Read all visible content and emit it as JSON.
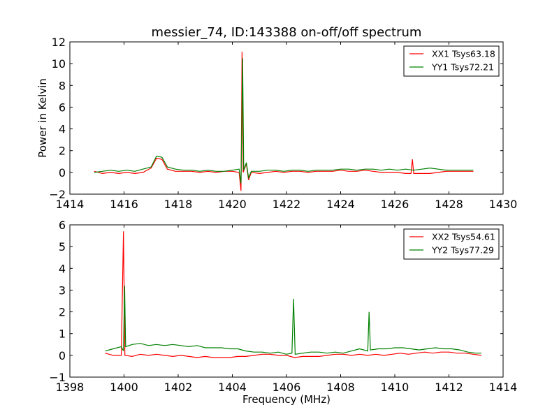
{
  "chart_data": [
    {
      "type": "line",
      "title": "messier_74, ID:143388 on-off/off spectrum",
      "xlabel": "",
      "ylabel": "Power in Kelvin",
      "xlim": [
        1414,
        1430
      ],
      "ylim": [
        -2,
        12
      ],
      "xticks": [
        1414,
        1416,
        1418,
        1420,
        1422,
        1424,
        1426,
        1428,
        1430
      ],
      "yticks": [
        -2,
        0,
        2,
        4,
        6,
        8,
        10,
        12
      ],
      "legend_position": "top-right",
      "series": [
        {
          "name": "XX1 Tsys63.18",
          "color": "#ff0000",
          "points": [
            [
              1414.9,
              0.1
            ],
            [
              1415.2,
              -0.1
            ],
            [
              1415.5,
              0.0
            ],
            [
              1415.8,
              -0.1
            ],
            [
              1416.1,
              0.0
            ],
            [
              1416.4,
              -0.1
            ],
            [
              1416.7,
              0.0
            ],
            [
              1417.0,
              0.4
            ],
            [
              1417.2,
              1.3
            ],
            [
              1417.4,
              1.2
            ],
            [
              1417.6,
              0.3
            ],
            [
              1417.9,
              0.1
            ],
            [
              1418.2,
              0.1
            ],
            [
              1418.5,
              0.1
            ],
            [
              1418.8,
              0.0
            ],
            [
              1419.1,
              0.1
            ],
            [
              1419.4,
              0.0
            ],
            [
              1419.7,
              0.1
            ],
            [
              1420.0,
              0.1
            ],
            [
              1420.25,
              0.0
            ],
            [
              1420.32,
              -1.7
            ],
            [
              1420.36,
              11.1
            ],
            [
              1420.4,
              0.0
            ],
            [
              1420.52,
              0.8
            ],
            [
              1420.6,
              -0.7
            ],
            [
              1420.7,
              0.0
            ],
            [
              1421.0,
              -0.1
            ],
            [
              1421.3,
              0.0
            ],
            [
              1421.6,
              0.1
            ],
            [
              1421.9,
              0.0
            ],
            [
              1422.2,
              0.1
            ],
            [
              1422.5,
              0.1
            ],
            [
              1422.8,
              0.0
            ],
            [
              1423.1,
              0.1
            ],
            [
              1423.4,
              0.1
            ],
            [
              1423.7,
              0.1
            ],
            [
              1424.0,
              0.2
            ],
            [
              1424.3,
              0.1
            ],
            [
              1424.6,
              0.1
            ],
            [
              1424.9,
              0.2
            ],
            [
              1425.2,
              0.1
            ],
            [
              1425.5,
              0.0
            ],
            [
              1425.8,
              0.0
            ],
            [
              1426.1,
              0.0
            ],
            [
              1426.4,
              -0.1
            ],
            [
              1426.6,
              -0.1
            ],
            [
              1426.65,
              1.2
            ],
            [
              1426.7,
              -0.1
            ],
            [
              1427.0,
              -0.1
            ],
            [
              1427.3,
              -0.1
            ],
            [
              1427.6,
              0.0
            ],
            [
              1427.9,
              0.1
            ],
            [
              1428.2,
              0.1
            ],
            [
              1428.5,
              0.1
            ],
            [
              1428.9,
              0.1
            ]
          ]
        },
        {
          "name": "YY1 Tsys72.21",
          "color": "#008000",
          "points": [
            [
              1414.9,
              0.0
            ],
            [
              1415.2,
              0.1
            ],
            [
              1415.5,
              0.2
            ],
            [
              1415.8,
              0.1
            ],
            [
              1416.1,
              0.2
            ],
            [
              1416.4,
              0.1
            ],
            [
              1416.7,
              0.3
            ],
            [
              1417.0,
              0.5
            ],
            [
              1417.2,
              1.5
            ],
            [
              1417.4,
              1.4
            ],
            [
              1417.6,
              0.5
            ],
            [
              1417.9,
              0.3
            ],
            [
              1418.2,
              0.2
            ],
            [
              1418.5,
              0.2
            ],
            [
              1418.8,
              0.1
            ],
            [
              1419.1,
              0.2
            ],
            [
              1419.4,
              0.1
            ],
            [
              1419.7,
              0.1
            ],
            [
              1420.0,
              0.2
            ],
            [
              1420.25,
              0.3
            ],
            [
              1420.32,
              -1.0
            ],
            [
              1420.38,
              10.5
            ],
            [
              1420.42,
              0.2
            ],
            [
              1420.52,
              0.9
            ],
            [
              1420.6,
              -0.5
            ],
            [
              1420.7,
              0.1
            ],
            [
              1421.0,
              0.1
            ],
            [
              1421.3,
              0.2
            ],
            [
              1421.6,
              0.2
            ],
            [
              1421.9,
              0.1
            ],
            [
              1422.2,
              0.2
            ],
            [
              1422.5,
              0.2
            ],
            [
              1422.8,
              0.1
            ],
            [
              1423.1,
              0.2
            ],
            [
              1423.4,
              0.2
            ],
            [
              1423.7,
              0.2
            ],
            [
              1424.0,
              0.3
            ],
            [
              1424.3,
              0.3
            ],
            [
              1424.6,
              0.2
            ],
            [
              1424.9,
              0.3
            ],
            [
              1425.2,
              0.3
            ],
            [
              1425.5,
              0.2
            ],
            [
              1425.8,
              0.3
            ],
            [
              1426.1,
              0.2
            ],
            [
              1426.4,
              0.3
            ],
            [
              1426.7,
              0.2
            ],
            [
              1427.0,
              0.3
            ],
            [
              1427.3,
              0.4
            ],
            [
              1427.6,
              0.3
            ],
            [
              1427.9,
              0.2
            ],
            [
              1428.2,
              0.2
            ],
            [
              1428.5,
              0.2
            ],
            [
              1428.9,
              0.2
            ]
          ]
        }
      ]
    },
    {
      "type": "line",
      "title": "",
      "xlabel": "Frequency (MHz)",
      "ylabel": "",
      "xlim": [
        1398,
        1414
      ],
      "ylim": [
        -1,
        6
      ],
      "xticks": [
        1398,
        1400,
        1402,
        1404,
        1406,
        1408,
        1410,
        1412,
        1414
      ],
      "yticks": [
        -1,
        0,
        1,
        2,
        3,
        4,
        5,
        6
      ],
      "legend_position": "top-right",
      "series": [
        {
          "name": "XX2 Tsys54.61",
          "color": "#ff0000",
          "points": [
            [
              1399.3,
              0.1
            ],
            [
              1399.6,
              0.0
            ],
            [
              1399.9,
              0.0
            ],
            [
              1399.98,
              5.7
            ],
            [
              1400.03,
              0.0
            ],
            [
              1400.3,
              -0.05
            ],
            [
              1400.6,
              0.05
            ],
            [
              1400.9,
              0.0
            ],
            [
              1401.2,
              0.05
            ],
            [
              1401.5,
              0.0
            ],
            [
              1401.8,
              -0.05
            ],
            [
              1402.1,
              0.0
            ],
            [
              1402.4,
              -0.05
            ],
            [
              1402.7,
              -0.1
            ],
            [
              1403.0,
              -0.05
            ],
            [
              1403.3,
              -0.1
            ],
            [
              1403.6,
              -0.1
            ],
            [
              1403.9,
              -0.1
            ],
            [
              1404.2,
              -0.05
            ],
            [
              1404.5,
              -0.05
            ],
            [
              1404.8,
              0.0
            ],
            [
              1405.1,
              0.05
            ],
            [
              1405.4,
              0.05
            ],
            [
              1405.7,
              0.0
            ],
            [
              1406.0,
              0.0
            ],
            [
              1406.3,
              -0.1
            ],
            [
              1406.6,
              -0.05
            ],
            [
              1406.9,
              -0.05
            ],
            [
              1407.2,
              -0.05
            ],
            [
              1407.5,
              0.0
            ],
            [
              1407.8,
              0.05
            ],
            [
              1408.1,
              0.05
            ],
            [
              1408.4,
              0.0
            ],
            [
              1408.7,
              0.05
            ],
            [
              1409.0,
              0.0
            ],
            [
              1409.3,
              0.05
            ],
            [
              1409.6,
              0.0
            ],
            [
              1409.9,
              0.05
            ],
            [
              1410.2,
              0.1
            ],
            [
              1410.5,
              0.05
            ],
            [
              1410.8,
              0.1
            ],
            [
              1411.1,
              0.15
            ],
            [
              1411.4,
              0.1
            ],
            [
              1411.7,
              0.15
            ],
            [
              1412.0,
              0.15
            ],
            [
              1412.3,
              0.1
            ],
            [
              1412.6,
              0.1
            ],
            [
              1412.9,
              0.05
            ],
            [
              1413.2,
              0.0
            ]
          ]
        },
        {
          "name": "YY2 Tsys77.29",
          "color": "#008000",
          "points": [
            [
              1399.3,
              0.2
            ],
            [
              1399.6,
              0.3
            ],
            [
              1399.9,
              0.4
            ],
            [
              1399.98,
              0.2
            ],
            [
              1400.02,
              3.2
            ],
            [
              1400.06,
              0.4
            ],
            [
              1400.3,
              0.5
            ],
            [
              1400.6,
              0.55
            ],
            [
              1400.9,
              0.45
            ],
            [
              1401.2,
              0.5
            ],
            [
              1401.5,
              0.45
            ],
            [
              1401.8,
              0.5
            ],
            [
              1402.1,
              0.45
            ],
            [
              1402.4,
              0.4
            ],
            [
              1402.7,
              0.45
            ],
            [
              1403.0,
              0.35
            ],
            [
              1403.3,
              0.35
            ],
            [
              1403.6,
              0.35
            ],
            [
              1403.9,
              0.3
            ],
            [
              1404.2,
              0.3
            ],
            [
              1404.5,
              0.2
            ],
            [
              1404.8,
              0.15
            ],
            [
              1405.1,
              0.15
            ],
            [
              1405.4,
              0.1
            ],
            [
              1405.7,
              0.15
            ],
            [
              1406.0,
              0.05
            ],
            [
              1406.2,
              0.1
            ],
            [
              1406.26,
              2.6
            ],
            [
              1406.32,
              0.05
            ],
            [
              1406.6,
              0.1
            ],
            [
              1406.9,
              0.15
            ],
            [
              1407.2,
              0.15
            ],
            [
              1407.5,
              0.1
            ],
            [
              1407.8,
              0.15
            ],
            [
              1408.1,
              0.1
            ],
            [
              1408.4,
              0.2
            ],
            [
              1408.7,
              0.3
            ],
            [
              1409.0,
              0.2
            ],
            [
              1409.05,
              2.0
            ],
            [
              1409.1,
              0.25
            ],
            [
              1409.4,
              0.3
            ],
            [
              1409.7,
              0.3
            ],
            [
              1410.0,
              0.35
            ],
            [
              1410.3,
              0.35
            ],
            [
              1410.6,
              0.3
            ],
            [
              1410.9,
              0.25
            ],
            [
              1411.2,
              0.3
            ],
            [
              1411.5,
              0.35
            ],
            [
              1411.8,
              0.3
            ],
            [
              1412.1,
              0.3
            ],
            [
              1412.4,
              0.25
            ],
            [
              1412.7,
              0.15
            ],
            [
              1413.0,
              0.1
            ],
            [
              1413.2,
              0.1
            ]
          ]
        }
      ]
    }
  ]
}
